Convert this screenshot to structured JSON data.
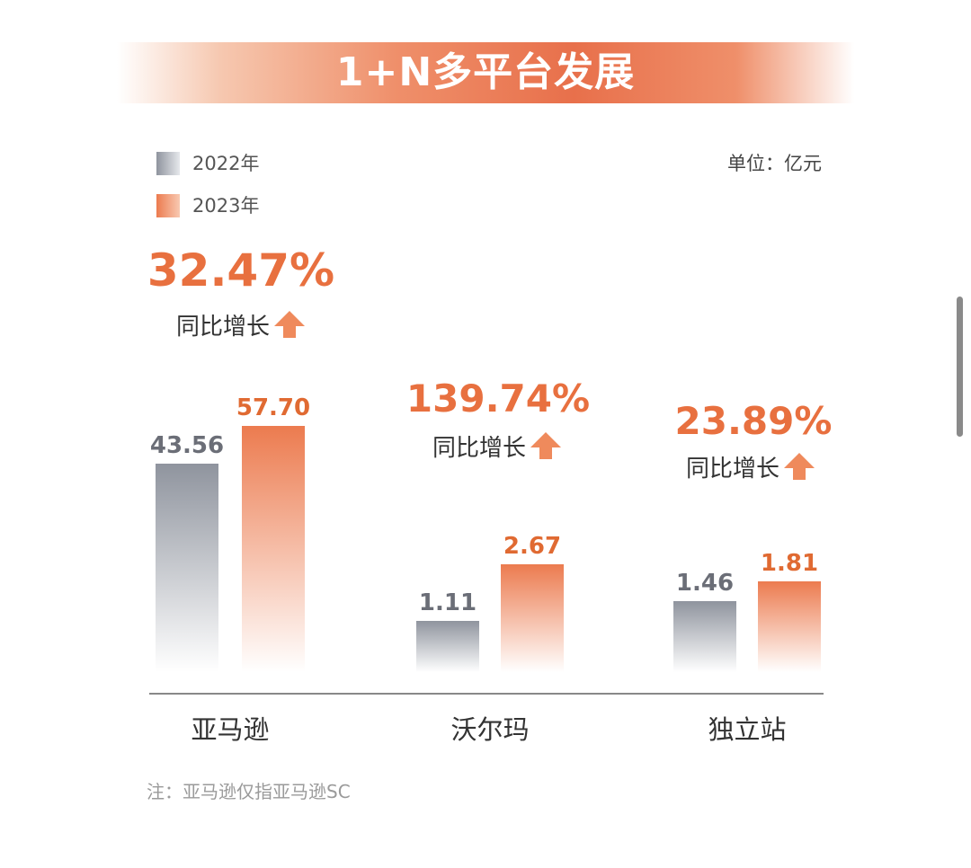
{
  "colors": {
    "title_band": "#e8704b",
    "series_2022": "#8f949e",
    "series_2023": "#ec7b4f",
    "growth_text": "#e8703f",
    "value_2022_text": "#6b6e77",
    "value_2023_text": "#e06a32",
    "axis": "#888888"
  },
  "title": "1+N多平台发展",
  "unit": "单位：亿元",
  "note": "注：亚马逊仅指亚马逊SC",
  "legend": [
    {
      "label": "2022年",
      "color": "#8f949e"
    },
    {
      "label": "2023年",
      "color": "#ec7b4f"
    }
  ],
  "growth_label": "同比增长",
  "icons": {
    "growth": "arrow-up-icon"
  },
  "chart_data": {
    "type": "bar",
    "categories": [
      "亚马逊",
      "沃尔玛",
      "独立站"
    ],
    "series": [
      {
        "name": "2022年",
        "values": [
          43.56,
          1.11,
          1.46
        ],
        "labels": [
          "43.56",
          "1.11",
          "1.46"
        ]
      },
      {
        "name": "2023年",
        "values": [
          57.7,
          2.67,
          1.81
        ],
        "labels": [
          "57.70",
          "2.67",
          "1.81"
        ]
      }
    ],
    "growth": [
      "32.47%",
      "139.74%",
      "23.89%"
    ],
    "legend_position": "top-left",
    "grid": false,
    "axis_scale": "broken (values not drawn to a common scale)"
  }
}
